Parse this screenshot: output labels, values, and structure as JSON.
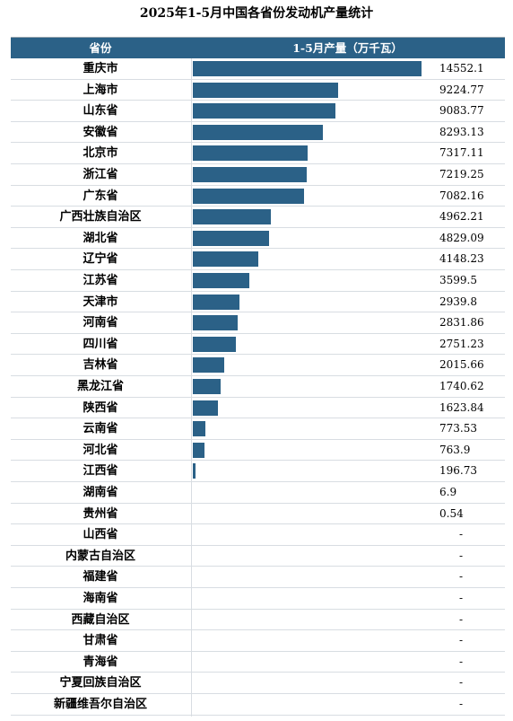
{
  "chart_data": {
    "type": "bar",
    "orientation": "horizontal",
    "title": "2025年1-5月中国各省份发动机产量统计",
    "header": {
      "category": "省份",
      "value": "1-5月产量（万千瓦）"
    },
    "max_value": 14552.1,
    "rows": [
      {
        "name": "重庆市",
        "value": 14552.1,
        "label": "14552.1"
      },
      {
        "name": "上海市",
        "value": 9224.77,
        "label": "9224.77"
      },
      {
        "name": "山东省",
        "value": 9083.77,
        "label": "9083.77"
      },
      {
        "name": "安徽省",
        "value": 8293.13,
        "label": "8293.13"
      },
      {
        "name": "北京市",
        "value": 7317.11,
        "label": "7317.11"
      },
      {
        "name": "浙江省",
        "value": 7219.25,
        "label": "7219.25"
      },
      {
        "name": "广东省",
        "value": 7082.16,
        "label": "7082.16"
      },
      {
        "name": "广西壮族自治区",
        "value": 4962.21,
        "label": "4962.21"
      },
      {
        "name": "湖北省",
        "value": 4829.09,
        "label": "4829.09"
      },
      {
        "name": "辽宁省",
        "value": 4148.23,
        "label": "4148.23"
      },
      {
        "name": "江苏省",
        "value": 3599.5,
        "label": "3599.5"
      },
      {
        "name": "天津市",
        "value": 2939.8,
        "label": "2939.8"
      },
      {
        "name": "河南省",
        "value": 2831.86,
        "label": "2831.86"
      },
      {
        "name": "四川省",
        "value": 2751.23,
        "label": "2751.23"
      },
      {
        "name": "吉林省",
        "value": 2015.66,
        "label": "2015.66"
      },
      {
        "name": "黑龙江省",
        "value": 1740.62,
        "label": "1740.62"
      },
      {
        "name": "陕西省",
        "value": 1623.84,
        "label": "1623.84"
      },
      {
        "name": "云南省",
        "value": 773.53,
        "label": "773.53"
      },
      {
        "name": "河北省",
        "value": 763.9,
        "label": "763.9"
      },
      {
        "name": "江西省",
        "value": 196.73,
        "label": "196.73"
      },
      {
        "name": "湖南省",
        "value": 6.9,
        "label": "6.9"
      },
      {
        "name": "贵州省",
        "value": 0.54,
        "label": "0.54"
      },
      {
        "name": "山西省",
        "value": null,
        "label": "-"
      },
      {
        "name": "内蒙古自治区",
        "value": null,
        "label": "-"
      },
      {
        "name": "福建省",
        "value": null,
        "label": "-"
      },
      {
        "name": "海南省",
        "value": null,
        "label": "-"
      },
      {
        "name": "西藏自治区",
        "value": null,
        "label": "-"
      },
      {
        "name": "甘肃省",
        "value": null,
        "label": "-"
      },
      {
        "name": "青海省",
        "value": null,
        "label": "-"
      },
      {
        "name": "宁夏回族自治区",
        "value": null,
        "label": "-"
      },
      {
        "name": "新疆维吾尔自治区",
        "value": null,
        "label": "-"
      }
    ],
    "bar_color": "#2b6187",
    "header_color": "#2b6187"
  }
}
